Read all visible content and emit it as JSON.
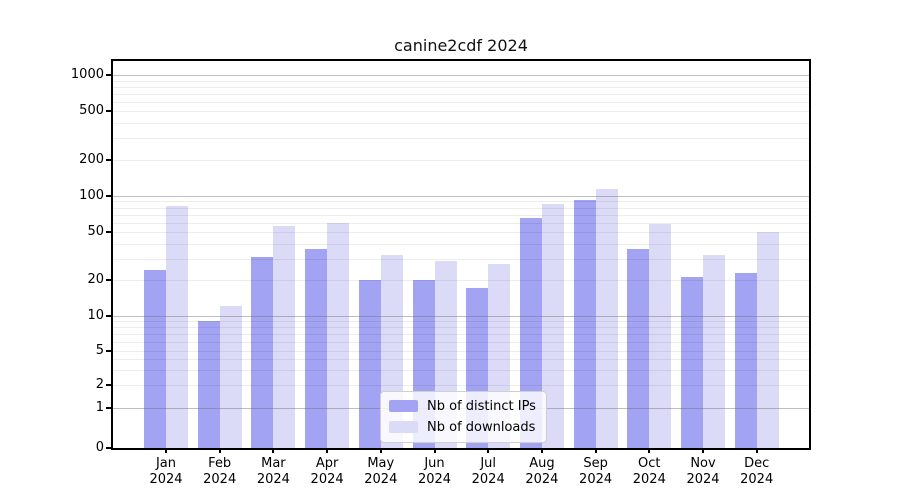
{
  "chart_data": {
    "type": "bar",
    "title": "canine2cdf 2024",
    "categories": [
      "Jan",
      "Feb",
      "Mar",
      "Apr",
      "May",
      "Jun",
      "Jul",
      "Aug",
      "Sep",
      "Oct",
      "Nov",
      "Dec"
    ],
    "category_year": "2024",
    "series": [
      {
        "name": "Nb of distinct IPs",
        "color": "#a3a3f3",
        "values": [
          24,
          9,
          31,
          36,
          20,
          20,
          17,
          65,
          92,
          36,
          21,
          23
        ]
      },
      {
        "name": "Nb of downloads",
        "color": "#dbdbf8",
        "values": [
          83,
          12,
          56,
          60,
          32,
          29,
          27,
          85,
          115,
          58,
          32,
          50
        ]
      }
    ],
    "yscale": "symlog",
    "yticks": [
      0,
      1,
      2,
      5,
      10,
      20,
      50,
      100,
      200,
      500,
      1000
    ],
    "ylim": [
      0,
      1200
    ],
    "grid": true,
    "grid_over_bars": true,
    "legend_position": "lower center",
    "colors": {
      "major_grid": "#c0c0c0",
      "minor_grid": "#ececec",
      "spine": "#000000",
      "title_text": "#111111"
    }
  }
}
